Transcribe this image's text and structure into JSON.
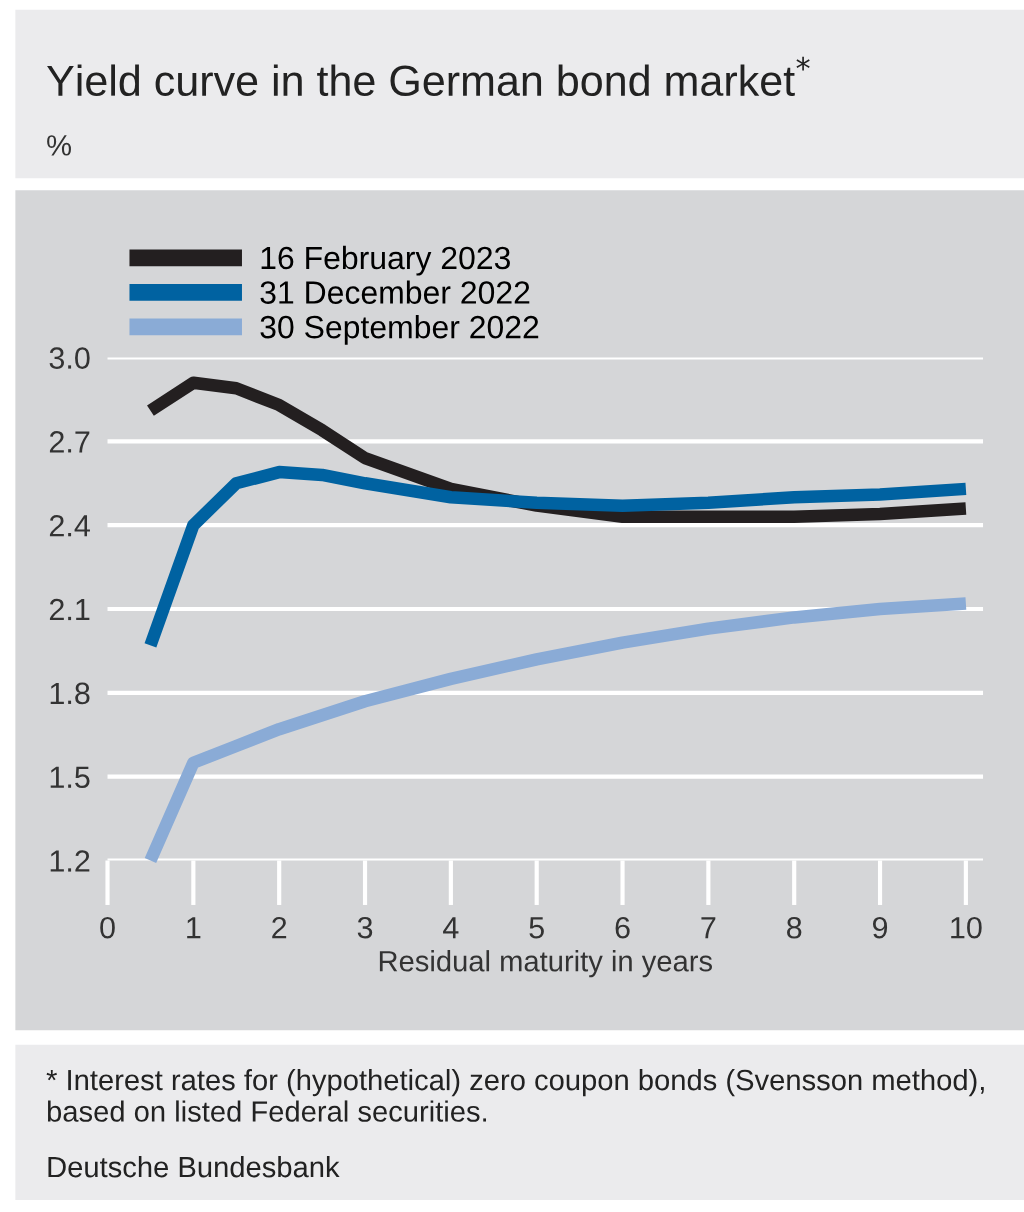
{
  "chart_data": {
    "type": "line",
    "title": "Yield curve in the German bond market$^{*}$",
    "subtitle": "%",
    "xlabel": "Residual maturity in years",
    "x": [
      0.5,
      1,
      1.5,
      2,
      2.5,
      3,
      4,
      5,
      6,
      7,
      8,
      9,
      10
    ],
    "series": [
      {
        "name": "16 February 2023",
        "color": "#231f20",
        "values": [
          2.81,
          2.91,
          2.89,
          2.83,
          2.74,
          2.64,
          2.53,
          2.47,
          2.43,
          2.43,
          2.43,
          2.44,
          2.46
        ]
      },
      {
        "name": "31 December 2022",
        "color": "#0062a1",
        "values": [
          1.97,
          2.4,
          2.55,
          2.59,
          2.58,
          2.55,
          2.5,
          2.48,
          2.47,
          2.48,
          2.5,
          2.51,
          2.53
        ]
      },
      {
        "name": "30 September 2022",
        "color": "#8aabd6",
        "values": [
          1.2,
          1.55,
          1.61,
          1.67,
          1.72,
          1.77,
          1.85,
          1.92,
          1.98,
          2.03,
          2.07,
          2.1,
          2.12
        ]
      }
    ],
    "xlim": [
      0,
      10.2
    ],
    "xticks": [
      0,
      1,
      2,
      3,
      4,
      5,
      6,
      7,
      8,
      9,
      10
    ],
    "ylim": [
      1.2,
      3.0
    ],
    "yticks": [
      1.2,
      1.5,
      1.8,
      2.1,
      2.4,
      2.7,
      {
        "value": 3.0,
        "label": "3.0"
      }
    ],
    "grid": "y",
    "legend": "top left",
    "line_style": "solid",
    "marker": "none",
    "annotations": [
      "* Interest rates for (hypothetical) zero coupon bonds (Svensson method), based on listed Federal securities.",
      "Deutsche Bundesbank"
    ]
  }
}
